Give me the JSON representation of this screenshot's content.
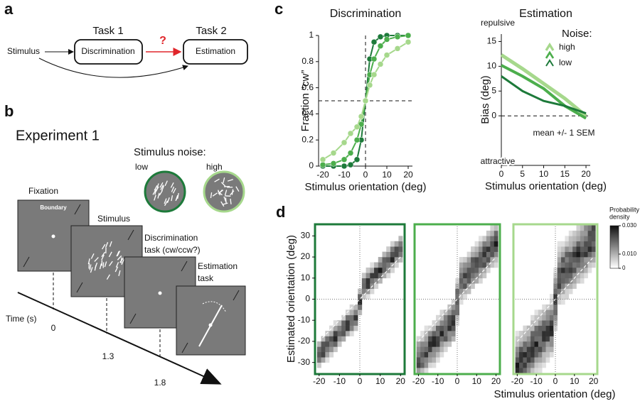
{
  "panel_labels": [
    "a",
    "b",
    "c",
    "d"
  ],
  "a": {
    "stimulus": "Stimulus",
    "task1": "Task 1",
    "task1_box": "Discrimination",
    "task2": "Task 2",
    "task2_box": "Estimation",
    "question": "?"
  },
  "b": {
    "title": "Experiment 1",
    "noise_title": "Stimulus noise:",
    "low": "low",
    "high": "high",
    "fixation": "Fixation",
    "boundary": "Boundary",
    "stimulus": "Stimulus",
    "discrimination": "Discrimination",
    "discrimination_2": "task (cw/ccw?)",
    "estimation": "Estimation",
    "estimation_2": "task",
    "time_label": "Time (s)",
    "times": [
      "0",
      "1.3",
      "1.8"
    ]
  },
  "chart_data": [
    {
      "type": "line",
      "title": "Discrimination",
      "xlabel": "Stimulus orientation (deg)",
      "ylabel": "Fraction “cw”",
      "x": [
        -20,
        -15,
        -10,
        -7,
        -4,
        -2,
        0,
        2,
        4,
        7,
        10,
        15,
        20
      ],
      "series": [
        {
          "color": "#1d7a3a",
          "values": [
            0,
            0,
            0,
            0.01,
            0.05,
            0.2,
            0.5,
            0.82,
            0.95,
            0.99,
            1,
            1,
            1
          ]
        },
        {
          "color": "#4cae4c",
          "values": [
            0.01,
            0.02,
            0.05,
            0.1,
            0.2,
            0.32,
            0.5,
            0.7,
            0.82,
            0.92,
            0.97,
            0.99,
            1
          ]
        },
        {
          "color": "#a6d88c",
          "values": [
            0.05,
            0.1,
            0.18,
            0.25,
            0.3,
            0.38,
            0.5,
            0.62,
            0.7,
            0.78,
            0.85,
            0.9,
            0.95
          ]
        }
      ],
      "xlim": [
        -22,
        22
      ],
      "xticks": [
        -20,
        -10,
        0,
        10,
        20
      ],
      "ylim": [
        0,
        1
      ],
      "yticks": [
        0,
        0.2,
        0.4,
        0.6,
        0.8,
        1
      ],
      "hline": 0.5,
      "vline": 0
    },
    {
      "type": "line",
      "title": "Estimation",
      "xlabel": "Stimulus orientation (deg)",
      "ylabel": "Bias (deg)",
      "annotations": [
        "repulsive",
        "attractive",
        "mean +/- 1 SEM"
      ],
      "legend_title": "Noise:",
      "x": [
        0,
        5,
        10,
        15,
        20
      ],
      "series": [
        {
          "name": "high",
          "color": "#a6d88c",
          "width": 5,
          "values": [
            12.3,
            9.5,
            6.5,
            3.5,
            0
          ]
        },
        {
          "color": "#4cae4c",
          "width": 4,
          "values": [
            10.2,
            8,
            5.5,
            2,
            -0.5
          ]
        },
        {
          "name": "low",
          "color": "#1d7a3a",
          "width": 3,
          "values": [
            8,
            5,
            3,
            2,
            0.5
          ]
        }
      ],
      "xlim": [
        0,
        21
      ],
      "xticks": [
        0,
        5,
        10,
        15,
        20
      ],
      "ylim": [
        -10,
        16.5
      ],
      "yticks": [
        0,
        5,
        10,
        15
      ],
      "hline": 0
    },
    {
      "type": "heatmap",
      "xlabel": "Stimulus orientation (deg)",
      "ylabel": "Estimated orientation (deg)",
      "panel_colors": [
        "#1d7a3a",
        "#4cae4c",
        "#a6d88c"
      ],
      "xlim": [
        -22,
        22
      ],
      "xticks": [
        -20,
        -10,
        0,
        10,
        20
      ],
      "ylim": [
        -35.5,
        35.5
      ],
      "yticks": [
        -30,
        -20,
        -10,
        0,
        10,
        20,
        30
      ],
      "colorbar_title": [
        "Probability",
        "density"
      ],
      "colorbar_lim": [
        0,
        0.03
      ],
      "colorbar_ticks": [
        0,
        {
          "value": 0.01,
          "label": "0.010"
        },
        {
          "value": 0.03,
          "label": "0.030"
        }
      ]
    }
  ]
}
